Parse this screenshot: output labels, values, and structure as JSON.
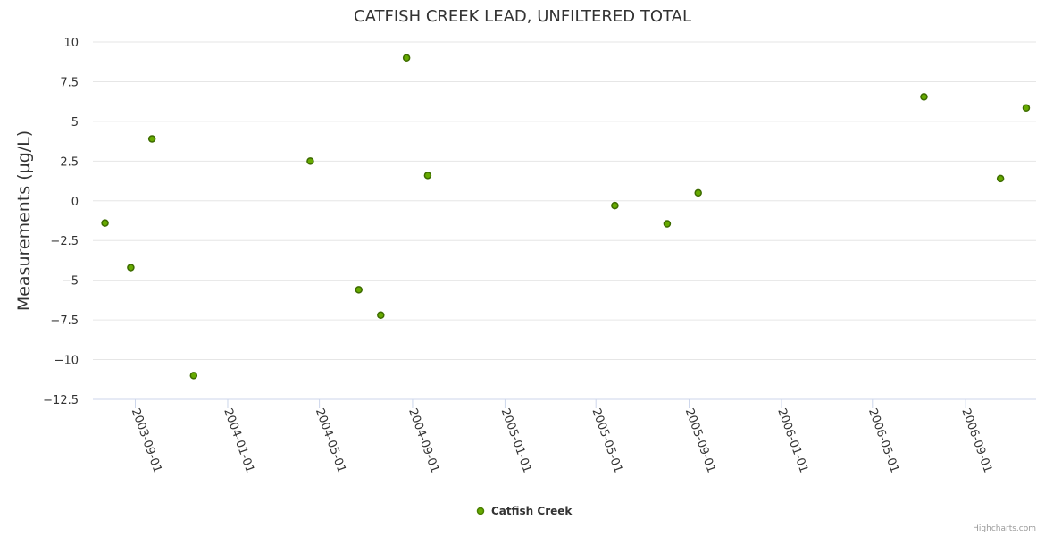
{
  "chart_data": {
    "type": "scatter",
    "title": "CATFISH CREEK LEAD, UNFILTERED TOTAL",
    "xlabel": "",
    "ylabel": "Measurements (µg/L)",
    "xlim": [
      "2003-07-07",
      "2006-12-03"
    ],
    "ylim": [
      -12.5,
      10
    ],
    "yticks": [
      10,
      7.5,
      5,
      2.5,
      0,
      -2.5,
      -5,
      -7.5,
      -10,
      -12.5
    ],
    "ytick_labels": [
      "10",
      "7.5",
      "5",
      "2.5",
      "0",
      "−2.5",
      "−5",
      "−7.5",
      "−10",
      "−12.5"
    ],
    "xticks": [
      "2003-09-01",
      "2004-01-01",
      "2004-05-01",
      "2004-09-01",
      "2005-01-01",
      "2005-05-01",
      "2005-09-01",
      "2006-01-01",
      "2006-05-01",
      "2006-09-01"
    ],
    "grid": true,
    "legend_position": "bottom-center",
    "series": [
      {
        "name": "Catfish Creek",
        "color": "#66aa00",
        "points": [
          {
            "x": "2003-07-23",
            "y": -1.4
          },
          {
            "x": "2003-08-26",
            "y": -4.2
          },
          {
            "x": "2003-09-23",
            "y": 3.9
          },
          {
            "x": "2003-11-17",
            "y": -11.0
          },
          {
            "x": "2004-04-19",
            "y": 2.5
          },
          {
            "x": "2004-06-22",
            "y": -5.6
          },
          {
            "x": "2004-07-21",
            "y": -7.2
          },
          {
            "x": "2004-08-24",
            "y": 9.0
          },
          {
            "x": "2004-09-21",
            "y": 1.6
          },
          {
            "x": "2005-05-26",
            "y": -0.3
          },
          {
            "x": "2005-08-03",
            "y": -1.45
          },
          {
            "x": "2005-09-13",
            "y": 0.5
          },
          {
            "x": "2006-07-08",
            "y": 6.55
          },
          {
            "x": "2006-10-17",
            "y": 1.4
          },
          {
            "x": "2006-11-20",
            "y": 5.85
          }
        ]
      }
    ]
  },
  "credit": "Highcharts.com"
}
